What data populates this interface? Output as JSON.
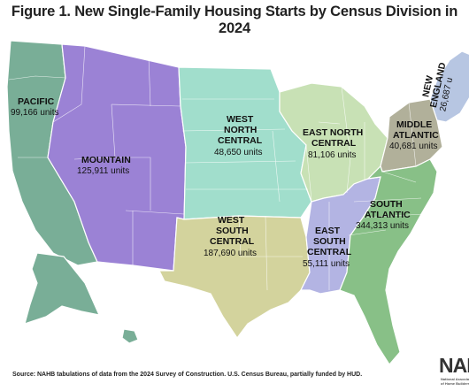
{
  "title": "Figure 1. New Single-Family Housing Starts by Census Division in 2024",
  "source": "Source: NAHB tabulations of data from the 2024 Survey of Construction. U.S. Census Bureau, partially funded by HUD.",
  "logo": {
    "text": "NAHB",
    "subtext": "National Association of Home Builders"
  },
  "divisions": [
    {
      "id": "pacific",
      "name_lines": [
        "PACIFIC"
      ],
      "value": "99,166 units",
      "color": "#79ae97"
    },
    {
      "id": "mountain",
      "name_lines": [
        "MOUNTAIN"
      ],
      "value": "125,911 units",
      "color": "#9b82d5"
    },
    {
      "id": "west-north-central",
      "name_lines": [
        "WEST",
        "NORTH",
        "CENTRAL"
      ],
      "value": "48,650 units",
      "color": "#a1decc"
    },
    {
      "id": "east-north-central",
      "name_lines": [
        "EAST NORTH",
        "CENTRAL"
      ],
      "value": "81,106 units",
      "color": "#c8e1b5"
    },
    {
      "id": "middle-atlantic",
      "name_lines": [
        "MIDDLE",
        "ATLANTIC"
      ],
      "value": "40,681 units",
      "color": "#b1b09a"
    },
    {
      "id": "new-england",
      "name_lines": [
        "NEW",
        "ENGLAND"
      ],
      "value": "26,687 u",
      "color": "#b7c6e2"
    },
    {
      "id": "west-south-central",
      "name_lines": [
        "WEST",
        "SOUTH",
        "CENTRAL"
      ],
      "value": "187,690 units",
      "color": "#d3d39d"
    },
    {
      "id": "east-south-central",
      "name_lines": [
        "EAST",
        "SOUTH",
        "CENTRAL"
      ],
      "value": "55,111 units",
      "color": "#b3b4e3"
    },
    {
      "id": "south-atlantic",
      "name_lines": [
        "SOUTH",
        "ATLANTIC"
      ],
      "value": "344,313 units",
      "color": "#88c087"
    }
  ]
}
